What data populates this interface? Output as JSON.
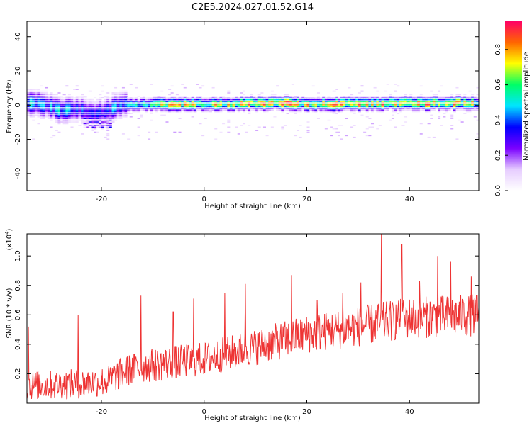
{
  "figure_title": "C2E5.2024.027.01.52.G14",
  "colors": {
    "snr_line": "#ee3333",
    "axis": "#000000",
    "colormap": [
      "#ffffff",
      "#e6ccff",
      "#7a00ff",
      "#0000ff",
      "#00e5ff",
      "#00ff66",
      "#ffff00",
      "#ff6600",
      "#ff0066"
    ]
  },
  "chart_data": [
    {
      "type": "heatmap",
      "xlabel": "Height of straight line (km)",
      "ylabel": "Frequency (Hz)",
      "xlim": [
        -34.5,
        53.5
      ],
      "ylim": [
        -50,
        49
      ],
      "xticks": [
        -20,
        0,
        20,
        40
      ],
      "yticks": [
        -40,
        -20,
        0,
        20,
        40
      ],
      "grid": false,
      "colorbar": {
        "label": "Normalized spectral amplitude",
        "range": [
          0,
          0.96
        ],
        "ticks": [
          0.0,
          0.2,
          0.4,
          0.6,
          0.8
        ]
      },
      "ridge": {
        "description_points_x_km": [
          -34,
          -31,
          -28,
          -25,
          -22,
          -19,
          -16,
          -13,
          -10,
          -5,
          0,
          5,
          10,
          15,
          20,
          25,
          30,
          35,
          40,
          45,
          50,
          53
        ],
        "center_frequency_hz": [
          1,
          0,
          -3,
          -2,
          -5,
          -3,
          0,
          0,
          0.5,
          0.5,
          0.5,
          0.5,
          1,
          1,
          0.5,
          0.5,
          0.5,
          1,
          1,
          1,
          1,
          1
        ],
        "peak_amplitude": [
          0.5,
          0.45,
          0.55,
          0.4,
          0.45,
          0.4,
          0.55,
          0.6,
          0.7,
          0.85,
          0.8,
          0.85,
          0.9,
          0.9,
          0.85,
          0.9,
          0.85,
          0.85,
          0.9,
          0.9,
          0.85,
          0.8
        ]
      }
    },
    {
      "type": "line",
      "xlabel": "Height of straight line (km)",
      "ylabel": "SNR (10 * v/v)",
      "yscale_label": "(x10",
      "yscale_exponent": "4",
      "yscale_suffix": ")",
      "xlim": [
        -34.5,
        53.5
      ],
      "ylim": [
        0,
        1.15
      ],
      "xticks": [
        -20,
        0,
        20,
        40
      ],
      "yticks": [
        0.2,
        0.4,
        0.6,
        0.8,
        1.0
      ],
      "grid": false,
      "series": [
        {
          "x_start_km": -34.5,
          "x_end_km": 53.5,
          "trend_points": [
            [
              -34.5,
              0.12
            ],
            [
              -25,
              0.13
            ],
            [
              -19,
              0.15
            ],
            [
              -15,
              0.22
            ],
            [
              -10,
              0.26
            ],
            [
              0,
              0.3
            ],
            [
              10,
              0.38
            ],
            [
              20,
              0.47
            ],
            [
              30,
              0.52
            ],
            [
              40,
              0.58
            ],
            [
              53.5,
              0.6
            ]
          ],
          "spikes": [
            [
              -34.2,
              0.52
            ],
            [
              -24.5,
              0.6
            ],
            [
              -12.3,
              0.73
            ],
            [
              -6,
              0.62
            ],
            [
              -2,
              0.71
            ],
            [
              4,
              0.75
            ],
            [
              8,
              0.81
            ],
            [
              17,
              0.87
            ],
            [
              22,
              0.7
            ],
            [
              27,
              0.75
            ],
            [
              30.5,
              0.82
            ],
            [
              34.5,
              1.15
            ],
            [
              38.5,
              1.08
            ],
            [
              42,
              0.83
            ],
            [
              45.5,
              1.0
            ],
            [
              48,
              0.96
            ],
            [
              52,
              0.86
            ]
          ],
          "noise_amplitude": 0.09
        }
      ]
    }
  ]
}
